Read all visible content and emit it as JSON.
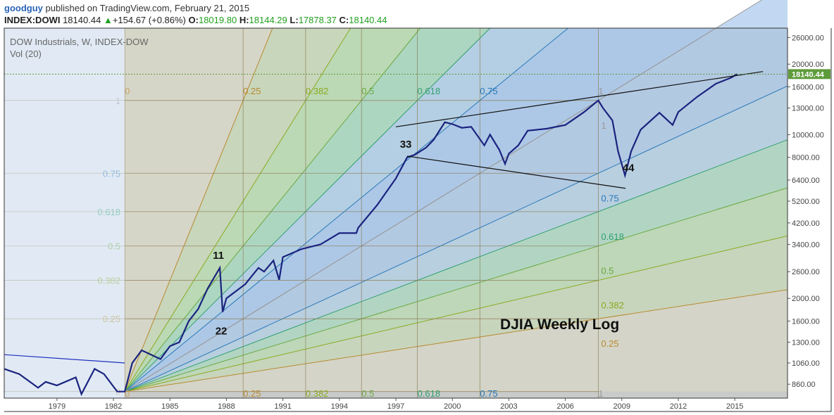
{
  "header": {
    "user": "goodguy",
    "published_text": "published on TradingView.com, February 21, 2015",
    "symbol": "INDEX:DOWI",
    "last": "18140.44",
    "change": "+154.67 (+0.86%)",
    "open_label": "O:",
    "open": "18019.80",
    "high_label": "H:",
    "high": "18144.29",
    "low_label": "L:",
    "low": "17878.37",
    "close_label": "C:",
    "close": "18140.44"
  },
  "legend": {
    "series": "DOW Industrials, W, INDEX-DOW",
    "volume": "Vol (20)"
  },
  "chart_data": {
    "type": "line",
    "title": "DJIA Weekly Log",
    "scale": "log",
    "xlim": [
      1976.2,
      2017.8
    ],
    "ylim": [
      750,
      28500
    ],
    "x_ticks": [
      "1979",
      "1982",
      "1985",
      "1988",
      "1991",
      "1994",
      "1997",
      "2000",
      "2003",
      "2006",
      "2009",
      "2012",
      "2015"
    ],
    "y_ticks": [
      "860.00",
      "1060.00",
      "1300.00",
      "1600.00",
      "2000.00",
      "2600.00",
      "3400.00",
      "4200.00",
      "5200.00",
      "6400.00",
      "8000.00",
      "10000.00",
      "13000.00",
      "16000.00",
      "20000.00",
      "26000.00"
    ],
    "last_price_label": "18140.44",
    "last_price": 18140.44,
    "colors": {
      "line": "#1a237e",
      "up_candle": "#2e8b2e",
      "last_price": "#5e9b3a",
      "fan_origin": "#caa070"
    },
    "series": [
      {
        "x": [
          1976.2,
          1977.0,
          1978.0,
          1978.4,
          1979.0,
          1980.0,
          1980.3,
          1981.0,
          1981.5,
          1982.2,
          1982.6,
          1983.0,
          1983.5,
          1984.0,
          1984.5,
          1985.0,
          1985.5,
          1986.0,
          1986.5,
          1987.0,
          1987.65,
          1987.8,
          1988.0,
          1989.0,
          1989.7,
          1990.0,
          1990.5,
          1990.8,
          1991.0,
          1992.0,
          1993.0,
          1994.0,
          1994.9,
          1995.0,
          1996.0,
          1997.0,
          1997.6,
          1998.0,
          1998.6,
          1999.0,
          1999.6,
          2000.0,
          2000.5,
          2001.0,
          2001.7,
          2002.0,
          2002.5,
          2002.8,
          2003.0,
          2003.5,
          2004.0,
          2005.0,
          2006.0,
          2007.0,
          2007.75,
          2008.0,
          2008.5,
          2008.8,
          2009.17,
          2009.5,
          2010.0,
          2011.0,
          2011.7,
          2012.0,
          2013.0,
          2014.0,
          2014.8,
          2015.13
        ],
        "values": [
          1000,
          950,
          830,
          880,
          850,
          920,
          780,
          1000,
          950,
          800,
          800,
          1060,
          1200,
          1150,
          1100,
          1250,
          1300,
          1600,
          1800,
          2200,
          2700,
          1750,
          2000,
          2300,
          2700,
          2600,
          2900,
          2400,
          3000,
          3250,
          3400,
          3800,
          3800,
          4000,
          5000,
          6500,
          8000,
          8200,
          8800,
          9500,
          11300,
          11100,
          10700,
          10800,
          9000,
          10000,
          8600,
          7500,
          8300,
          9000,
          10400,
          10600,
          11000,
          12500,
          14000,
          13000,
          11500,
          8500,
          6700,
          8500,
          10500,
          12400,
          11000,
          12500,
          14500,
          16500,
          17500,
          18140
        ]
      }
    ],
    "fan_levels": [
      "0",
      "0.25",
      "0.382",
      "0.5",
      "0.618",
      "0.75",
      "1"
    ],
    "fan_left_levels": [
      "1",
      "0.75",
      "0.618",
      "0.5",
      "0.382",
      "0.25",
      "0"
    ],
    "fan_right_levels": [
      "1",
      "0.75",
      "0.618",
      "0.5",
      "0.382",
      "0.25",
      "0"
    ],
    "wave_labels": [
      "11",
      "22",
      "33",
      "44"
    ],
    "wave_points": [
      {
        "x": 1987.65,
        "value": 2750
      },
      {
        "x": 1987.8,
        "value": 1750
      },
      {
        "x": 1997.6,
        "value": 8200
      },
      {
        "x": 2009.2,
        "value": 6500
      }
    ]
  }
}
